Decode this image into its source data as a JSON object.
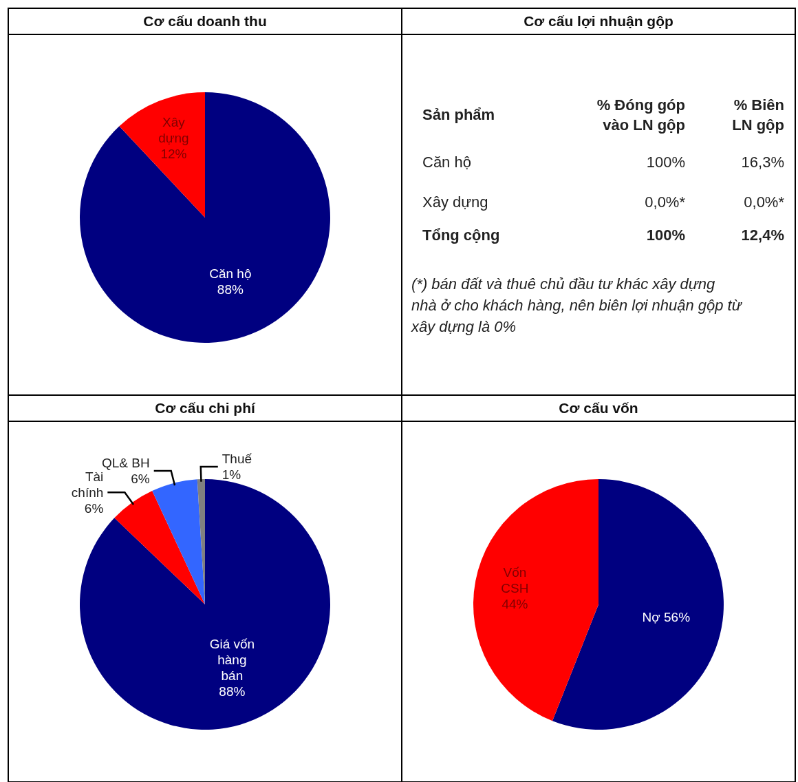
{
  "chart_data": [
    {
      "type": "pie",
      "title": "Cơ cấu doanh thu",
      "categories": [
        "Căn hộ",
        "Xây dựng"
      ],
      "values": [
        88,
        12
      ],
      "colors": [
        "#000080",
        "#ff0000"
      ],
      "value_labels": [
        "88%",
        "12%"
      ]
    },
    {
      "type": "other",
      "title": "Cơ cấu lợi nhuận gộp",
      "annotations": [
        "Sản phẩm",
        "% Đóng góp vào LN gộp",
        "% Biên LN gộp",
        "Căn hộ",
        "100%",
        "16,3%",
        "Xây dựng",
        "0,0%*",
        "0,0%*",
        "Tổng cộng",
        "100%",
        "12,4%",
        "(*) bán đất và thuê chủ đầu tư khác xây dựng nhà ở cho khách hàng, nên biên lợi nhuận gộp từ xây dựng là 0%"
      ]
    },
    {
      "type": "pie",
      "title": "Cơ cấu chi phí",
      "categories": [
        "Giá vốn hàng bán",
        "Tài chính",
        "QL& BH",
        "Thuế"
      ],
      "values": [
        88,
        6,
        6,
        1
      ],
      "colors": [
        "#000080",
        "#ff0000",
        "#3366ff",
        "#808080"
      ],
      "value_labels": [
        "88%",
        "6%",
        "6%",
        "1%"
      ]
    },
    {
      "type": "pie",
      "title": "Cơ cấu vốn",
      "categories": [
        "Nợ",
        "Vốn CSH"
      ],
      "values": [
        56,
        44
      ],
      "colors": [
        "#000080",
        "#ff0000"
      ],
      "value_labels": [
        "56%",
        "44%"
      ]
    }
  ]
}
